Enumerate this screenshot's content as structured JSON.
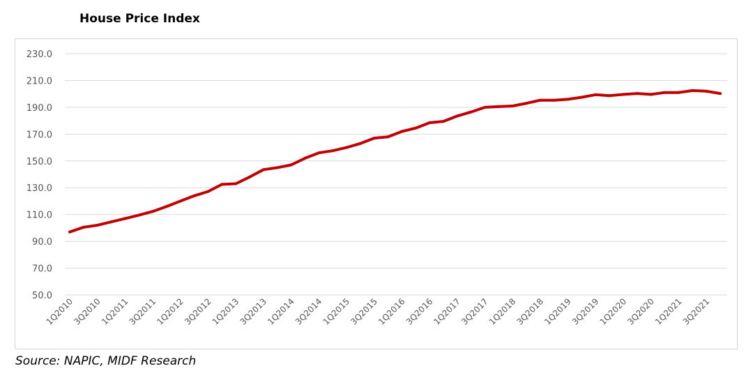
{
  "chart_data": {
    "type": "line",
    "title": "House Price Index",
    "source": "Source: NAPIC, MIDF Research",
    "xlabel": "",
    "ylabel": "",
    "ylim": [
      50,
      230
    ],
    "yticks": [
      "50.0",
      "70.0",
      "90.0",
      "110.0",
      "130.0",
      "150.0",
      "170.0",
      "190.0",
      "210.0",
      "230.0"
    ],
    "grid": true,
    "line_color": "#c00000",
    "categories": [
      "1Q2010",
      "2Q2010",
      "3Q2010",
      "4Q2010",
      "1Q2011",
      "2Q2011",
      "3Q2011",
      "4Q2011",
      "1Q2012",
      "2Q2012",
      "3Q2012",
      "4Q2012",
      "1Q2013",
      "2Q2013",
      "3Q2013",
      "4Q2013",
      "1Q2014",
      "2Q2014",
      "3Q2014",
      "4Q2014",
      "1Q2015",
      "2Q2015",
      "3Q2015",
      "4Q2015",
      "1Q2016",
      "2Q2016",
      "3Q2016",
      "4Q2016",
      "1Q2017",
      "2Q2017",
      "3Q2017",
      "4Q2017",
      "1Q2018",
      "2Q2018",
      "3Q2018",
      "4Q2018",
      "1Q2019",
      "2Q2019",
      "3Q2019",
      "4Q2019",
      "1Q2020",
      "2Q2020",
      "3Q2020",
      "4Q2020",
      "1Q2021",
      "2Q2021",
      "3Q2021",
      "4Q2021"
    ],
    "shown_tick_labels": [
      "1Q2010",
      "3Q2010",
      "1Q2011",
      "3Q2011",
      "1Q2012",
      "3Q2012",
      "1Q2013",
      "3Q2013",
      "1Q2014",
      "3Q2014",
      "1Q2015",
      "3Q2015",
      "1Q2016",
      "3Q2016",
      "1Q2017",
      "3Q2017",
      "1Q2018",
      "3Q2018",
      "1Q2019",
      "3Q2019",
      "1Q2020",
      "3Q2020",
      "1Q2021",
      "3Q2021"
    ],
    "values": [
      97.0,
      100.5,
      102.0,
      104.5,
      107.0,
      109.5,
      112.3,
      116.0,
      120.0,
      124.0,
      127.2,
      132.5,
      133.0,
      138.0,
      143.5,
      145.0,
      147.0,
      152.0,
      156.0,
      157.6,
      160.0,
      163.0,
      167.0,
      168.0,
      172.0,
      174.5,
      178.5,
      179.5,
      183.5,
      186.5,
      190.0,
      190.5,
      191.0,
      193.0,
      195.3,
      195.3,
      196.0,
      197.5,
      199.4,
      198.7,
      199.6,
      200.3,
      199.6,
      201.0,
      201.0,
      202.5,
      202.0,
      200.3
    ]
  }
}
